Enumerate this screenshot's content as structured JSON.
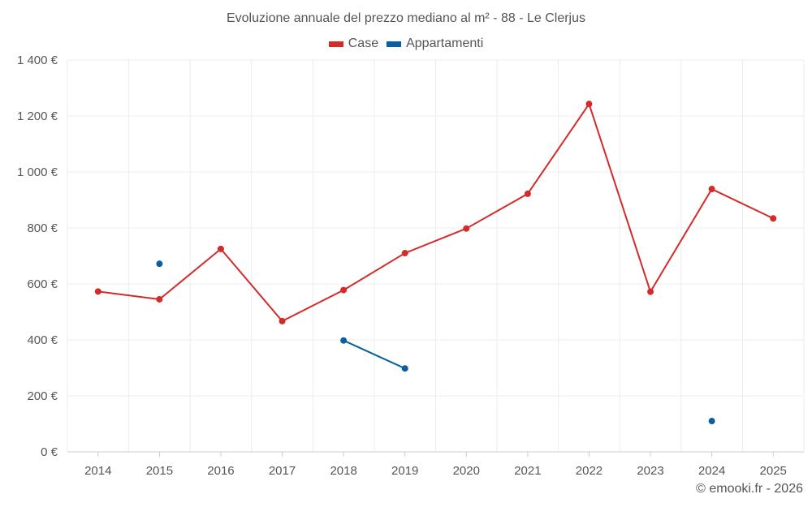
{
  "chart_data": {
    "type": "line",
    "title": "Evoluzione annuale del prezzo mediano al m² - 88 - Le Clerjus",
    "categories": [
      "2014",
      "2015",
      "2016",
      "2017",
      "2018",
      "2019",
      "2020",
      "2021",
      "2022",
      "2023",
      "2024",
      "2025"
    ],
    "y_ticks": [
      0,
      200,
      400,
      600,
      800,
      1000,
      1200,
      1400
    ],
    "y_tick_labels": [
      "0 €",
      "200 €",
      "400 €",
      "600 €",
      "800 €",
      "1 000 €",
      "1 200 €",
      "1 400 €"
    ],
    "ylim": [
      0,
      1400
    ],
    "xlabel": "",
    "ylabel": "",
    "grid": true,
    "legend_position": "top-center",
    "series": [
      {
        "name": "Case",
        "color": "#d32a2a",
        "values": [
          573,
          545,
          725,
          467,
          578,
          710,
          798,
          922,
          1243,
          572,
          939,
          834
        ]
      },
      {
        "name": "Appartamenti",
        "color": "#0a5f9e",
        "values": [
          null,
          672,
          null,
          null,
          398,
          298,
          null,
          null,
          null,
          null,
          110,
          null
        ]
      }
    ]
  },
  "credit": "© emooki.fr - 2026"
}
